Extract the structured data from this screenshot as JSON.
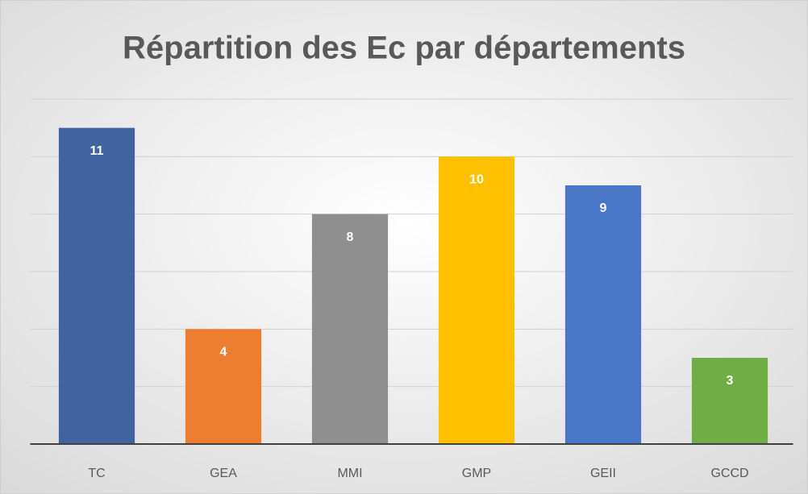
{
  "chart_data": {
    "type": "bar",
    "title": "Répartition des Ec par départements",
    "categories": [
      "TC",
      "GEA",
      "MMI",
      "GMP",
      "GEII",
      "GCCD"
    ],
    "values": [
      11,
      4,
      8,
      10,
      9,
      3
    ],
    "colors": [
      "#41649e",
      "#ed7d31",
      "#8f8f8f",
      "#ffc000",
      "#4a76c8",
      "#70ad47"
    ],
    "ylim": [
      0,
      12
    ],
    "yticks": [
      0,
      2,
      4,
      6,
      8,
      10,
      12
    ],
    "grid": true
  }
}
